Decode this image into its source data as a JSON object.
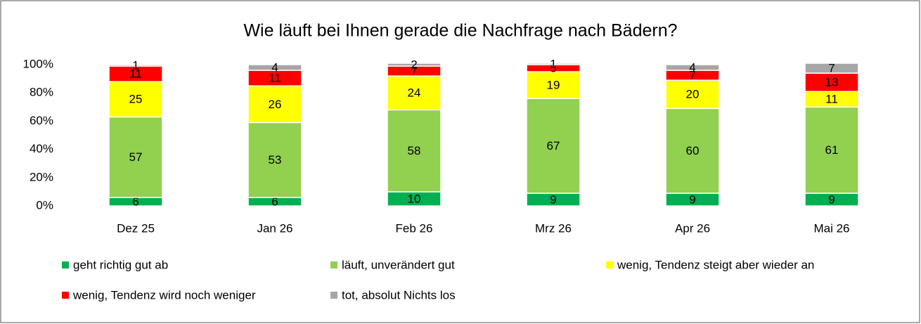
{
  "chart_data": {
    "type": "stacked_bar",
    "title": "Wie läuft bei Ihnen gerade die Nachfrage nach Bädern?",
    "categories": [
      "Dez 25",
      "Jan 26",
      "Feb 26",
      "Mrz 26",
      "Apr 26",
      "Mai 26"
    ],
    "series": [
      {
        "name": "geht richtig gut ab",
        "color": "#00b050",
        "values": [
          6,
          6,
          10,
          9,
          9,
          9
        ]
      },
      {
        "name": "läuft, unverändert gut",
        "color": "#92d050",
        "values": [
          57,
          53,
          58,
          67,
          60,
          61
        ]
      },
      {
        "name": "wenig, Tendenz steigt aber wieder an",
        "color": "#ffff00",
        "values": [
          25,
          26,
          24,
          19,
          20,
          11
        ]
      },
      {
        "name": "wenig, Tendenz wird noch weniger",
        "color": "#ff0000",
        "values": [
          11,
          11,
          7,
          5,
          7,
          13
        ]
      },
      {
        "name": "tot, absolut Nichts los",
        "color": "#a6a6a6",
        "values": [
          1,
          4,
          2,
          1,
          4,
          7
        ]
      }
    ],
    "ylim": [
      0,
      100
    ],
    "yticks": [
      {
        "value": 0,
        "label": "0%"
      },
      {
        "value": 20,
        "label": "20%"
      },
      {
        "value": 40,
        "label": "40%"
      },
      {
        "value": 60,
        "label": "60%"
      },
      {
        "value": 80,
        "label": "80%"
      },
      {
        "value": 100,
        "label": "100%"
      }
    ],
    "legend": "bottom"
  }
}
